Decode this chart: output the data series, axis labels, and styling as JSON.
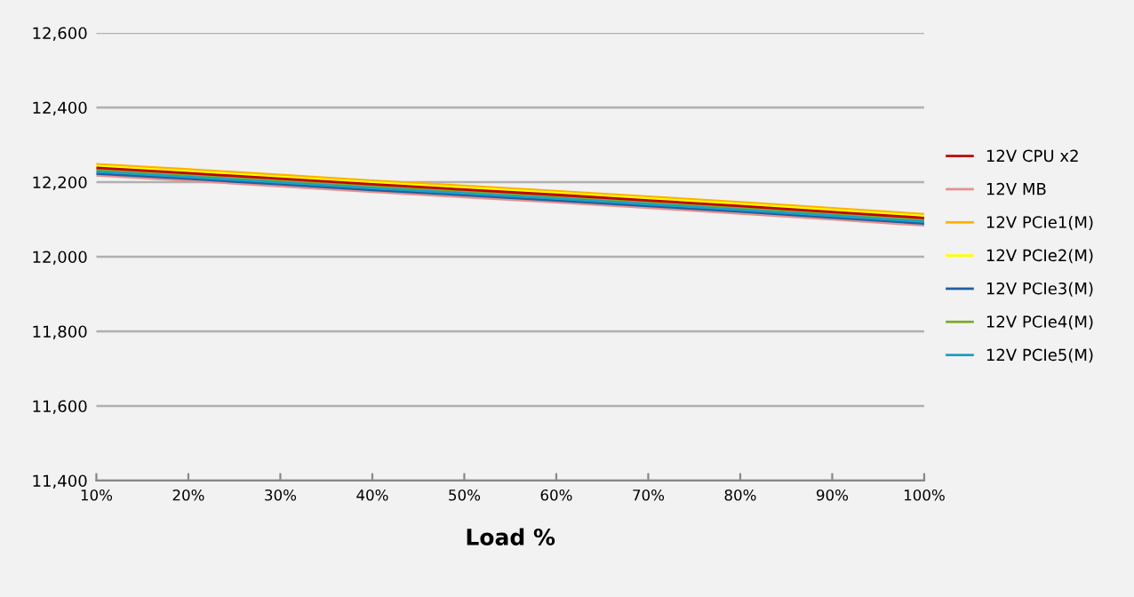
{
  "chart_data": {
    "type": "line",
    "xlabel": "Load %",
    "categories": [
      "10%",
      "20%",
      "30%",
      "40%",
      "50%",
      "60%",
      "70%",
      "80%",
      "90%",
      "100%"
    ],
    "series": [
      {
        "name": "12V CPU x2",
        "color": "#c00000",
        "values": [
          12238,
          12224,
          12209,
          12194,
          12180,
          12166,
          12151,
          12136,
          12120,
          12104
        ]
      },
      {
        "name": "12V MB",
        "color": "#e6918f",
        "values": [
          12218,
          12204,
          12189,
          12174,
          12160,
          12146,
          12131,
          12116,
          12100,
          12084
        ]
      },
      {
        "name": "12V PCIe1(M)",
        "color": "#ffb000",
        "values": [
          12248,
          12234,
          12219,
          12204,
          12190,
          12176,
          12161,
          12146,
          12130,
          12114
        ]
      },
      {
        "name": "12V PCIe2(M)",
        "color": "#ffff00",
        "values": [
          12243,
          12229,
          12214,
          12199,
          12185,
          12171,
          12156,
          12141,
          12125,
          12109
        ]
      },
      {
        "name": "12V PCIe3(M)",
        "color": "#1f5fa0",
        "values": [
          12223,
          12209,
          12194,
          12179,
          12165,
          12151,
          12136,
          12121,
          12105,
          12089
        ]
      },
      {
        "name": "12V PCIe4(M)",
        "color": "#7faa2a",
        "values": [
          12233,
          12219,
          12204,
          12189,
          12175,
          12161,
          12146,
          12131,
          12115,
          12099
        ]
      },
      {
        "name": "12V PCIe5(M)",
        "color": "#1ca0c4",
        "values": [
          12228,
          12214,
          12199,
          12184,
          12170,
          12156,
          12141,
          12126,
          12110,
          12094
        ]
      }
    ],
    "ylim": [
      11400,
      12600
    ],
    "yticks": [
      {
        "value": 11400,
        "label": "11,400"
      },
      {
        "value": 11600,
        "label": "11,600"
      },
      {
        "value": 11800,
        "label": "11,800"
      },
      {
        "value": 12000,
        "label": "12,000"
      },
      {
        "value": 12200,
        "label": "12,200"
      },
      {
        "value": 12400,
        "label": "12,400"
      },
      {
        "value": 12600,
        "label": "12,600"
      }
    ],
    "grid": "y",
    "legend": "right",
    "marker": "none",
    "line_style": "solid"
  }
}
